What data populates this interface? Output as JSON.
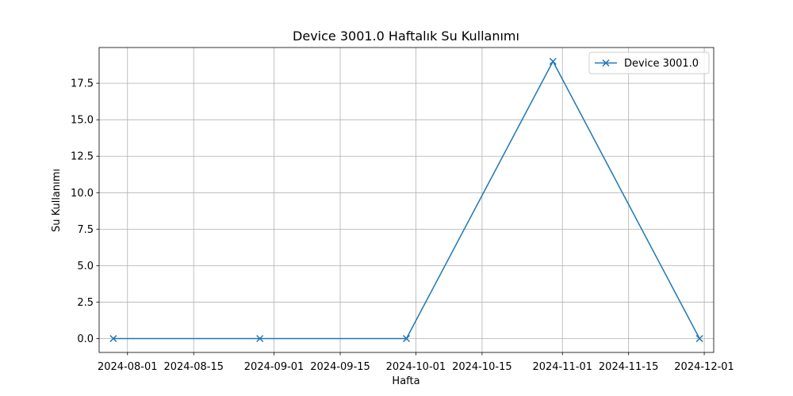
{
  "chart_data": {
    "type": "line",
    "title": "Device 3001.0 Haftalık Su Kullanımı",
    "xlabel": "Hafta",
    "ylabel": "Su Kullanımı",
    "x_is_date": true,
    "xlim": [
      "2024-07-26",
      "2024-12-03"
    ],
    "ylim": [
      -0.95,
      19.95
    ],
    "grid": true,
    "legend_position": "upper right",
    "x_ticks": [
      "2024-08-01",
      "2024-08-15",
      "2024-09-01",
      "2024-09-15",
      "2024-10-01",
      "2024-10-15",
      "2024-11-01",
      "2024-11-15",
      "2024-12-01"
    ],
    "y_ticks": [
      "0.0",
      "2.5",
      "5.0",
      "7.5",
      "10.0",
      "12.5",
      "15.0",
      "17.5"
    ],
    "series": [
      {
        "name": "Device 3001.0",
        "color": "#1f77b4",
        "marker": "x",
        "x": [
          "2024-07-29",
          "2024-08-29",
          "2024-09-29",
          "2024-10-30",
          "2024-11-30"
        ],
        "y": [
          0,
          0,
          0,
          19,
          0
        ]
      }
    ]
  }
}
